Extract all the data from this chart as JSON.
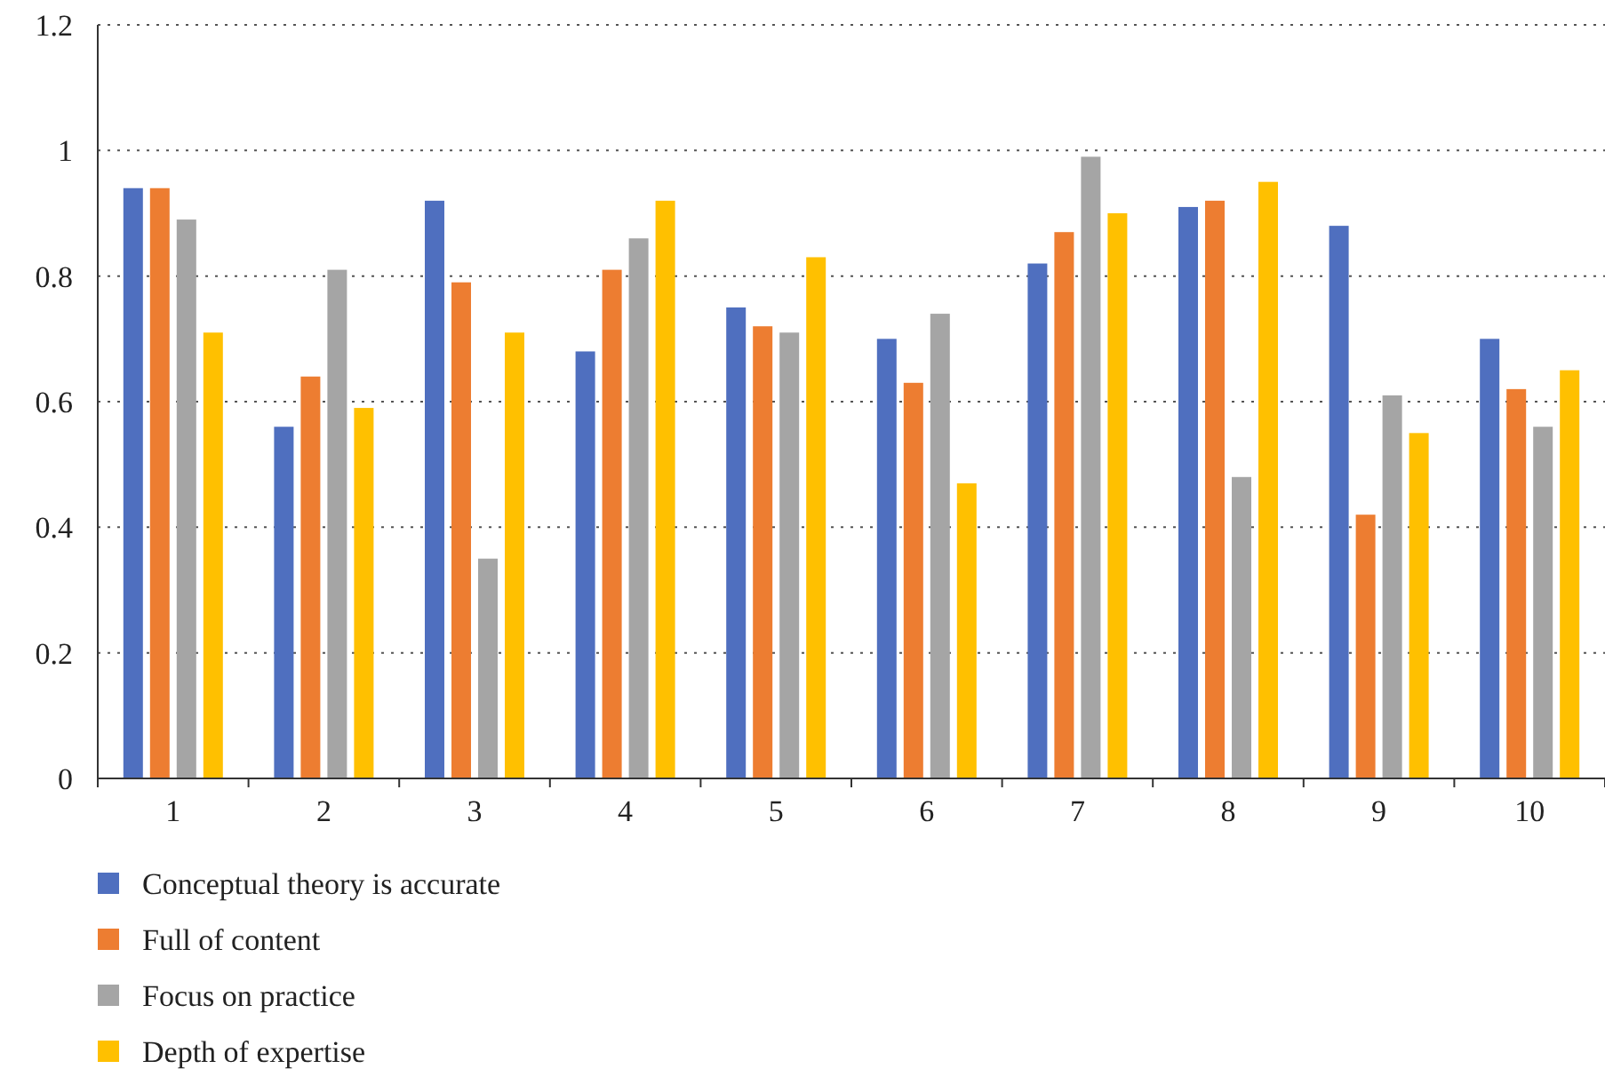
{
  "chart_data": {
    "type": "bar",
    "categories": [
      "1",
      "2",
      "3",
      "4",
      "5",
      "6",
      "7",
      "8",
      "9",
      "10"
    ],
    "series": [
      {
        "name": "Conceptual theory is accurate",
        "color": "#4f6fbf",
        "values": [
          0.94,
          0.56,
          0.92,
          0.68,
          0.75,
          0.7,
          0.82,
          0.91,
          0.88,
          0.7
        ]
      },
      {
        "name": "Full of content",
        "color": "#ed7d31",
        "values": [
          0.94,
          0.64,
          0.79,
          0.81,
          0.72,
          0.63,
          0.87,
          0.92,
          0.42,
          0.62
        ]
      },
      {
        "name": "Focus on practice",
        "color": "#a5a5a5",
        "values": [
          0.89,
          0.81,
          0.35,
          0.86,
          0.71,
          0.74,
          0.99,
          0.48,
          0.61,
          0.56
        ]
      },
      {
        "name": "Depth of expertise",
        "color": "#ffc000",
        "values": [
          0.71,
          0.59,
          0.71,
          0.92,
          0.83,
          0.47,
          0.9,
          0.95,
          0.55,
          0.65
        ]
      }
    ],
    "ylim": [
      0,
      1.2
    ],
    "yticks": [
      0,
      0.2,
      0.4,
      0.6,
      0.8,
      1,
      1.2
    ],
    "grid": "y",
    "legend": "bottom"
  }
}
